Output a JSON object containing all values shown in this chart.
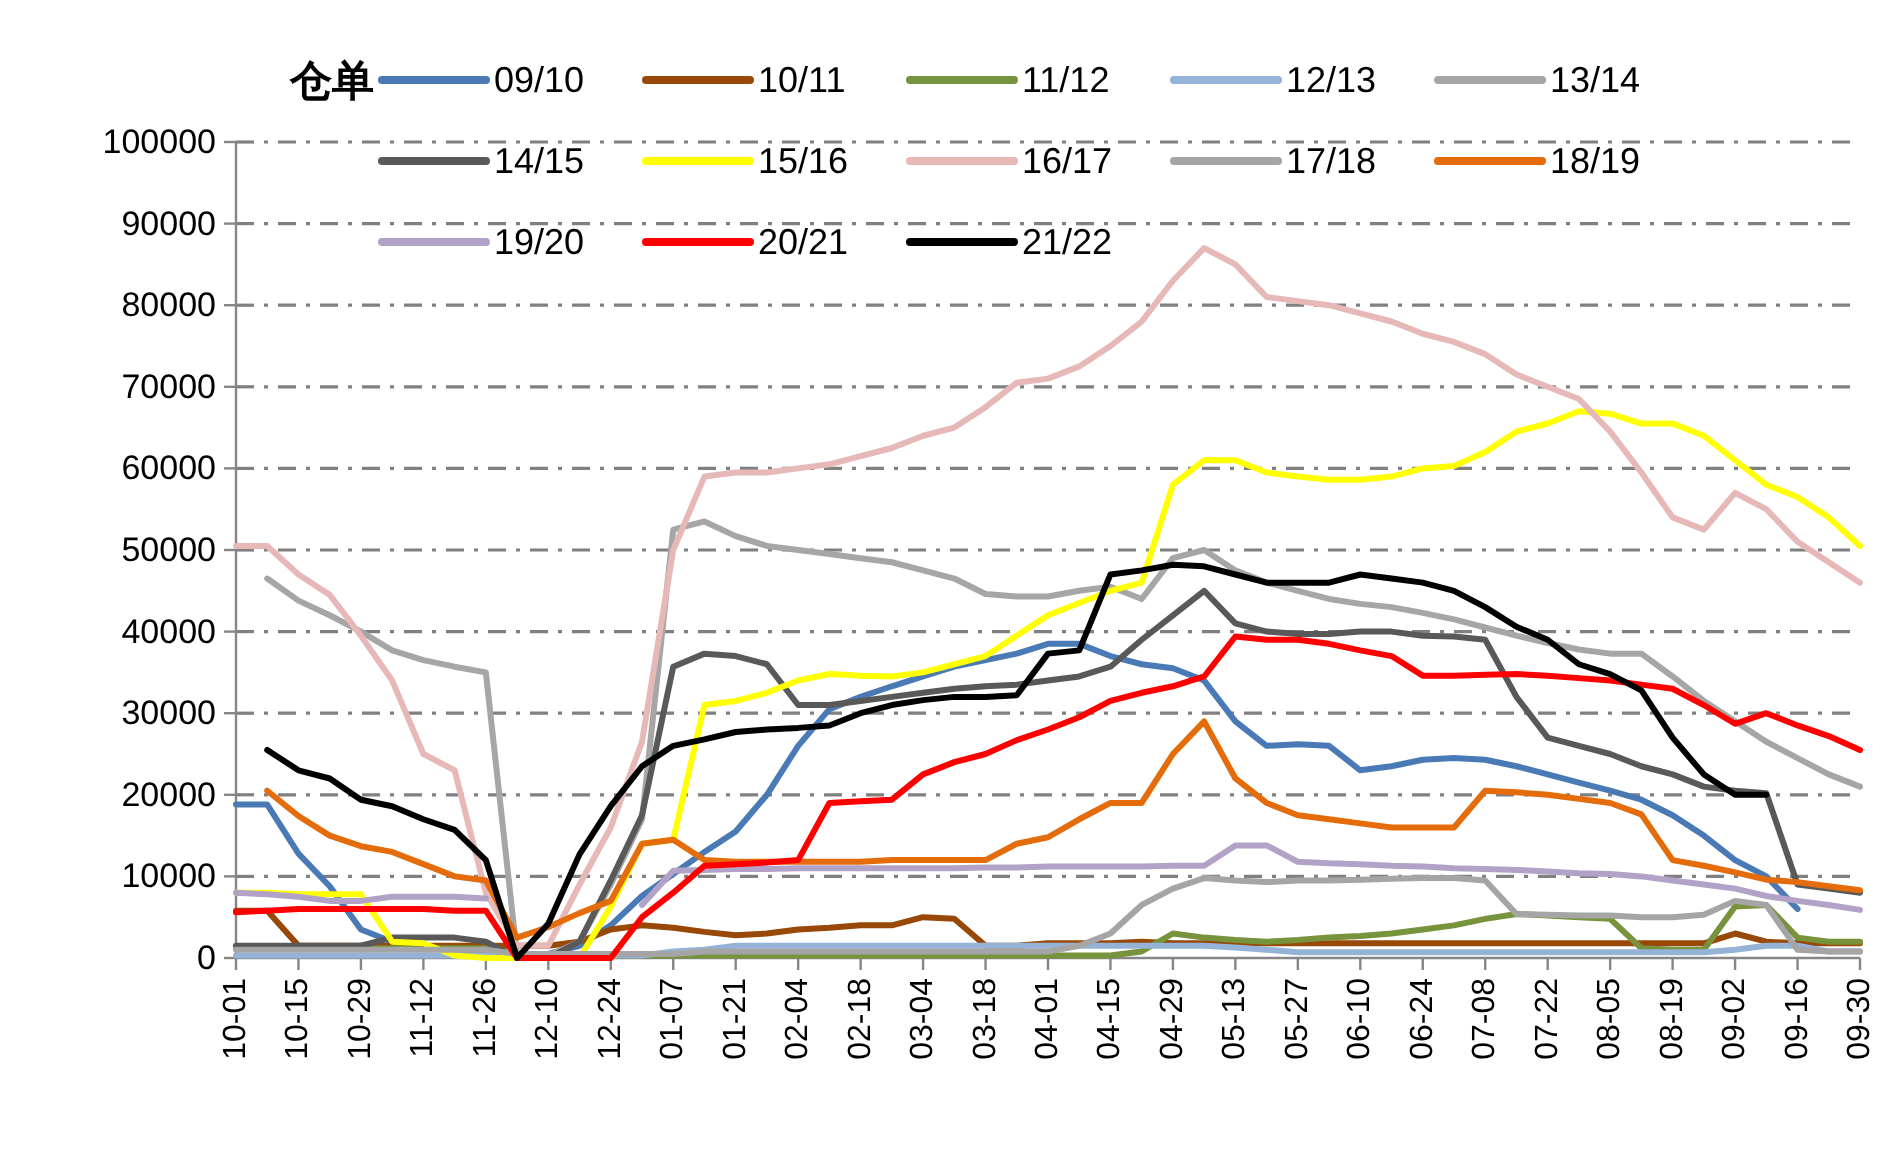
{
  "chart_data": {
    "type": "line",
    "legend_title": "仓单",
    "legend": "top",
    "grid": "y",
    "categories": [
      "10-01",
      null,
      "10-15",
      null,
      "10-29",
      null,
      "11-12",
      null,
      "11-26",
      null,
      "12-10",
      null,
      "12-24",
      null,
      "01-07",
      null,
      "01-21",
      null,
      "02-04",
      null,
      "02-18",
      null,
      "03-04",
      null,
      "03-18",
      null,
      "04-01",
      null,
      "04-15",
      null,
      "04-29",
      null,
      "05-13",
      null,
      "05-27",
      null,
      "06-10",
      null,
      "06-24",
      null,
      "07-08",
      null,
      "07-22",
      null,
      "08-05",
      null,
      "08-19",
      null,
      "09-02",
      null,
      "09-16",
      null,
      "09-30"
    ],
    "ylim": [
      0,
      100000
    ],
    "yticks": [
      0,
      10000,
      20000,
      30000,
      40000,
      50000,
      60000,
      70000,
      80000,
      90000,
      100000
    ],
    "series": [
      {
        "name": "09/10",
        "color": "#4a7ab5",
        "values": [
          18800,
          18800,
          12800,
          8800,
          3500,
          2000,
          1500,
          1000,
          500,
          300,
          500,
          1500,
          4000,
          7600,
          10300,
          13000,
          15500,
          20000,
          26000,
          30500,
          32000,
          33300,
          34500,
          35700,
          36500,
          37300,
          38500,
          38500,
          37000,
          36000,
          35500,
          34000,
          29000,
          26000,
          26200,
          26000,
          23000,
          23500,
          24300,
          24500,
          24300,
          23500,
          22500,
          21500,
          20500,
          19400,
          17500,
          15000,
          12000,
          10000,
          6000,
          null,
          null
        ]
      },
      {
        "name": "10/11",
        "color": "#984807",
        "values": [
          5800,
          5800,
          1500,
          1500,
          1500,
          1500,
          1500,
          1500,
          1500,
          1500,
          1500,
          2000,
          3500,
          4000,
          3700,
          3200,
          2800,
          3000,
          3500,
          3700,
          4000,
          4000,
          5000,
          4800,
          1500,
          1500,
          1800,
          1800,
          1800,
          2000,
          1800,
          1800,
          1800,
          1800,
          1800,
          1800,
          1800,
          1800,
          1800,
          1800,
          1800,
          1800,
          1800,
          1800,
          1800,
          1800,
          1800,
          1800,
          3000,
          2000,
          1800,
          1800,
          1800
        ]
      },
      {
        "name": "11/12",
        "color": "#77933c",
        "values": [
          1200,
          1200,
          1200,
          1200,
          1200,
          1200,
          1200,
          1200,
          1200,
          300,
          300,
          300,
          300,
          300,
          300,
          300,
          300,
          300,
          300,
          300,
          300,
          300,
          300,
          300,
          300,
          300,
          300,
          300,
          300,
          800,
          3000,
          2500,
          2200,
          2000,
          2200,
          2500,
          2700,
          3000,
          3500,
          4000,
          4800,
          5400,
          5200,
          5000,
          4800,
          1200,
          1000,
          1000,
          6300,
          6500,
          2500,
          2000,
          2000
        ]
      },
      {
        "name": "12/13",
        "color": "#95b3d7",
        "values": [
          300,
          300,
          300,
          300,
          300,
          300,
          300,
          300,
          300,
          300,
          300,
          300,
          300,
          300,
          800,
          1000,
          1500,
          1500,
          1500,
          1500,
          1500,
          1500,
          1500,
          1500,
          1500,
          1500,
          1500,
          1500,
          1500,
          1500,
          1500,
          1500,
          1300,
          1000,
          700,
          700,
          700,
          700,
          700,
          700,
          700,
          700,
          700,
          700,
          700,
          700,
          700,
          700,
          1000,
          1500,
          1500,
          800,
          800
        ]
      },
      {
        "name": "13/14",
        "color": "#a6a6a6",
        "values": [
          null,
          46500,
          43800,
          42000,
          40000,
          37700,
          36500,
          35700,
          35000,
          300,
          300,
          2000,
          9000,
          17000,
          52500,
          53500,
          51700,
          50500,
          50000,
          49500,
          49000,
          48500,
          47500,
          46500,
          44600,
          44300,
          44300,
          45000,
          45500,
          44000,
          49000,
          50000,
          47500,
          46000,
          45000,
          44000,
          43400,
          43000,
          42300,
          41500,
          40500,
          39500,
          38600,
          37800,
          37300,
          37300,
          34500,
          31500,
          29000,
          26500,
          24500,
          22500,
          21000
        ]
      },
      {
        "name": "14/15",
        "color": "#595959",
        "values": [
          1500,
          1500,
          1500,
          1500,
          1500,
          2500,
          2500,
          2500,
          2000,
          0,
          0,
          2000,
          9500,
          17500,
          35700,
          37300,
          37000,
          36000,
          31000,
          31000,
          31500,
          32000,
          32500,
          33000,
          33300,
          33500,
          34000,
          34500,
          35700,
          39000,
          42000,
          45000,
          41000,
          40000,
          39700,
          39700,
          40000,
          40000,
          39500,
          39400,
          39000,
          32000,
          27000,
          26000,
          25000,
          23500,
          22500,
          21000,
          20500,
          20200,
          9000,
          8500,
          8000
        ]
      },
      {
        "name": "15/16",
        "color": "#ffff00",
        "values": [
          8000,
          8000,
          7800,
          7800,
          7800,
          2000,
          1800,
          300,
          0,
          0,
          0,
          0,
          6300,
          14000,
          14500,
          31000,
          31500,
          32500,
          34000,
          34800,
          34600,
          34500,
          35000,
          36000,
          37000,
          39500,
          42000,
          43500,
          45000,
          46000,
          58000,
          61000,
          61000,
          59500,
          59000,
          58600,
          58600,
          59000,
          60000,
          60300,
          62000,
          64500,
          65500,
          67000,
          66700,
          65500,
          65500,
          64000,
          61000,
          58000,
          56500,
          54000,
          50500
        ]
      },
      {
        "name": "16/17",
        "color": "#e6b9b8",
        "values": [
          50500,
          50500,
          47000,
          44500,
          39500,
          34000,
          25000,
          23000,
          8000,
          1500,
          1500,
          9000,
          16000,
          26500,
          50000,
          59000,
          59500,
          59500,
          60000,
          60500,
          61500,
          62500,
          64000,
          65000,
          67500,
          70500,
          71000,
          72500,
          75000,
          78000,
          83000,
          87000,
          85000,
          81000,
          80500,
          80000,
          79000,
          78000,
          76500,
          75500,
          74000,
          71500,
          70000,
          68500,
          64500,
          59500,
          54000,
          52500,
          57000,
          55000,
          51000,
          48500,
          46000
        ]
      },
      {
        "name": "17/18",
        "color": "#a5a5a5",
        "values": [
          1000,
          1000,
          1000,
          1000,
          1000,
          1000,
          1000,
          1000,
          1000,
          500,
          500,
          500,
          500,
          500,
          500,
          800,
          800,
          800,
          800,
          800,
          800,
          800,
          800,
          800,
          800,
          800,
          800,
          1500,
          3000,
          6500,
          8500,
          9800,
          9500,
          9300,
          9500,
          9500,
          9600,
          9700,
          9800,
          9800,
          9500,
          5400,
          5300,
          5200,
          5200,
          5000,
          5000,
          5300,
          7000,
          6500,
          1000,
          800,
          800
        ]
      },
      {
        "name": "18/19",
        "color": "#e46c0a",
        "values": [
          null,
          20500,
          17400,
          15000,
          13700,
          13000,
          11500,
          10000,
          9500,
          2500,
          3800,
          5500,
          7000,
          14000,
          14500,
          12000,
          11800,
          11800,
          11800,
          11800,
          11800,
          12000,
          12000,
          12000,
          12000,
          14000,
          14800,
          17000,
          19000,
          19000,
          25000,
          29000,
          22000,
          19000,
          17500,
          17000,
          16500,
          16000,
          16000,
          16000,
          20500,
          20300,
          20000,
          19500,
          19000,
          17600,
          12000,
          11300,
          10500,
          9600,
          9300,
          8800,
          8300
        ]
      },
      {
        "name": "19/20",
        "color": "#b3a2c7",
        "values": [
          8000,
          7800,
          7500,
          7000,
          7000,
          7500,
          7500,
          7500,
          7300,
          null,
          null,
          null,
          null,
          6500,
          10700,
          10800,
          10900,
          10900,
          11000,
          11000,
          11000,
          11000,
          11000,
          11000,
          11100,
          11100,
          11200,
          11200,
          11200,
          11200,
          11300,
          11300,
          13800,
          13800,
          11800,
          11600,
          11500,
          11300,
          11200,
          11000,
          10900,
          10800,
          10600,
          10400,
          10300,
          10000,
          9500,
          9000,
          8500,
          7600,
          7000,
          6500,
          5900
        ]
      },
      {
        "name": "20/21",
        "color": "#ff0000",
        "values": [
          5600,
          5800,
          6000,
          6000,
          6000,
          6000,
          6000,
          5800,
          5800,
          0,
          0,
          0,
          0,
          5000,
          8000,
          11300,
          11500,
          11700,
          12000,
          19000,
          19200,
          19400,
          22500,
          24000,
          25000,
          26700,
          28000,
          29500,
          31500,
          32500,
          33300,
          34500,
          39400,
          39000,
          39000,
          38500,
          37700,
          37000,
          34600,
          34600,
          34700,
          34800,
          34600,
          34300,
          34000,
          33500,
          33000,
          31000,
          28700,
          30000,
          28500,
          27200,
          25500
        ]
      },
      {
        "name": "21/22",
        "color": "#000000",
        "values": [
          null,
          25500,
          23000,
          22000,
          19400,
          18600,
          17000,
          15700,
          12000,
          0,
          4200,
          12700,
          18600,
          23500,
          26000,
          26800,
          27700,
          28000,
          28200,
          28500,
          30000,
          31000,
          31600,
          32000,
          32000,
          32200,
          37300,
          37700,
          47000,
          47500,
          48200,
          48000,
          47000,
          46000,
          46000,
          46000,
          47000,
          46500,
          46000,
          45000,
          43000,
          40600,
          39000,
          36000,
          34800,
          32800,
          27000,
          22500,
          20000,
          20000,
          null,
          null,
          null
        ]
      }
    ]
  }
}
